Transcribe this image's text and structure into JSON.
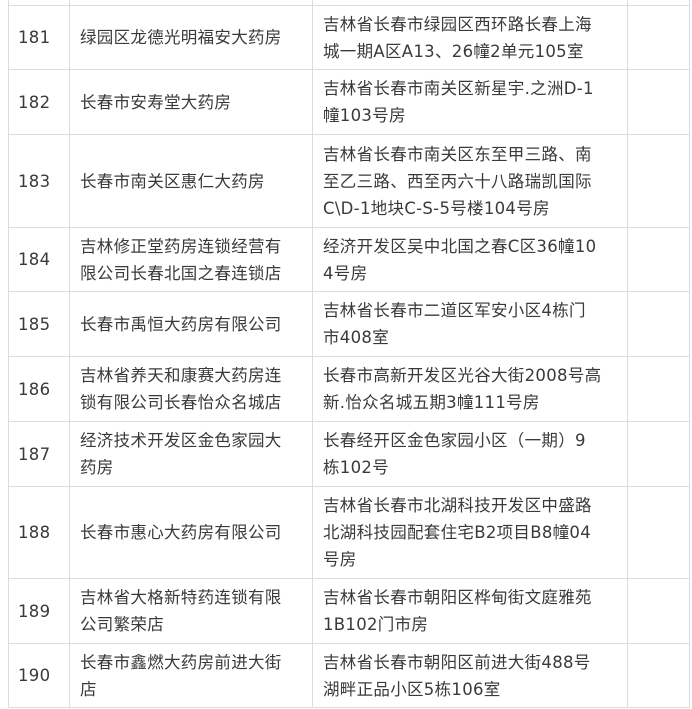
{
  "rows": [
    {
      "no": "181",
      "name": "绿园区龙德光明福安大药房",
      "address": "吉林省长春市绿园区西环路长春上海\n城一期A区A13、26幢2单元105室",
      "extra": ""
    },
    {
      "no": "182",
      "name": "长春市安寿堂大药房",
      "address": "吉林省长春市南关区新星宇.之洲D-1\n幢103号房",
      "extra": ""
    },
    {
      "no": "183",
      "name": "长春市南关区惠仁大药房",
      "address": "吉林省长春市南关区东至甲三路、南\n至乙三路、西至丙六十八路瑞凯国际\nC\\D-1地块C-S-5号楼104号房",
      "extra": ""
    },
    {
      "no": "184",
      "name": "吉林修正堂药房连锁经营有\n限公司长春北国之春连锁店",
      "address": "经济开发区吴中北国之春C区36幢10\n4号房",
      "extra": ""
    },
    {
      "no": "185",
      "name": "长春市禹恒大药房有限公司",
      "address": "吉林省长春市二道区军安小区4栋门\n市408室",
      "extra": ""
    },
    {
      "no": "186",
      "name": "吉林省养天和康赛大药房连\n锁有限公司长春怡众名城店",
      "address": "长春市高新开发区光谷大街2008号高\n新.怡众名城五期3幢111号房",
      "extra": ""
    },
    {
      "no": "187",
      "name": "经济技术开发区金色家园大\n药房",
      "address": "长春经开区金色家园小区（一期）9\n栋102号",
      "extra": ""
    },
    {
      "no": "188",
      "name": "长春市惠心大药房有限公司",
      "address": "吉林省长春市北湖科技开发区中盛路\n北湖科技园配套住宅B2项目B8幢04\n号房",
      "extra": ""
    },
    {
      "no": "189",
      "name": "吉林省大格新特药连锁有限\n公司繁荣店",
      "address": "吉林省长春市朝阳区桦甸街文庭雅苑\n1B102门市房",
      "extra": ""
    },
    {
      "no": "190",
      "name": "长春市鑫燃大药房前进大街\n店",
      "address": "吉林省长春市朝阳区前进大街488号\n湖畔正品小区5栋106室",
      "extra": ""
    }
  ]
}
